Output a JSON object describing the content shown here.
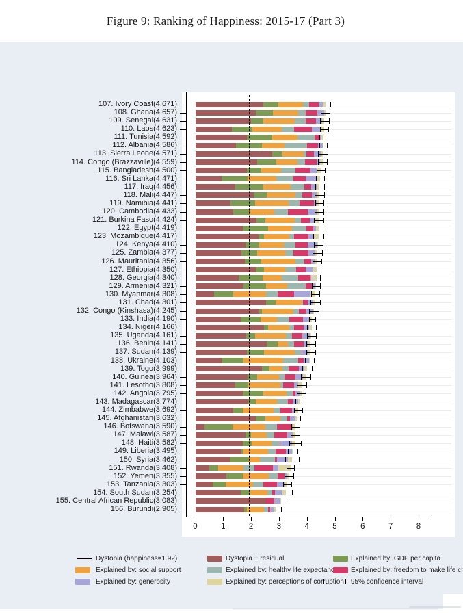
{
  "title": "Figure 9: Ranking of Happiness: 2015-17 (Part 3)",
  "colors": {
    "residual": "#a25c5c",
    "gdp": "#7d9b52",
    "social": "#efa23d",
    "health": "#9cb8ae",
    "freedom": "#d53a68",
    "generosity": "#a8a6d8",
    "corruption": "#ddd49e",
    "dystopia_line": "#000000",
    "panel_bg": "#e9eef5",
    "plot_bg": "#ffffff",
    "grid": "#ededed"
  },
  "legend": {
    "items": [
      {
        "label": "Dystopia (happiness=1.92)",
        "swatch": "line",
        "color": "#000000",
        "col": 0,
        "row": 0
      },
      {
        "label": "Dystopia + residual",
        "swatch": "box",
        "color": "#a25c5c",
        "col": 1,
        "row": 0
      },
      {
        "label": "Explained by: GDP per capita",
        "swatch": "box",
        "color": "#7d9b52",
        "col": 2,
        "row": 0
      },
      {
        "label": "Explained by: social support",
        "swatch": "box",
        "color": "#efa23d",
        "col": 0,
        "row": 1
      },
      {
        "label": "Explained by: healthy life expectancy",
        "swatch": "box",
        "color": "#9cb8ae",
        "col": 1,
        "row": 1
      },
      {
        "label": "Explained by: freedom to make life choices",
        "swatch": "box",
        "color": "#d53a68",
        "col": 2,
        "row": 1
      },
      {
        "label": "Explained by: generosity",
        "swatch": "box",
        "color": "#a8a6d8",
        "col": 0,
        "row": 2
      },
      {
        "label": "Explained by: perceptions of corruption",
        "swatch": "box",
        "color": "#ddd49e",
        "col": 1,
        "row": 2
      },
      {
        "label": "95% confidence interval",
        "swatch": "errorbar",
        "color": "#000000",
        "col": 2,
        "row": 2
      }
    ]
  },
  "chart_data": {
    "type": "bar",
    "orientation": "horizontal-stacked",
    "title": "Figure 9: Ranking of Happiness: 2015-17 (Part 3)",
    "xlabel": "",
    "ylabel": "",
    "xlim": [
      0,
      8
    ],
    "xticks": [
      0,
      1,
      2,
      3,
      4,
      5,
      6,
      7,
      8
    ],
    "grid": "faint horizontal row lines",
    "reference_line": {
      "label": "Dystopia (happiness=1.92)",
      "value": 1.92,
      "style": "dashed"
    },
    "stack_order": [
      "residual",
      "gdp",
      "social",
      "health",
      "freedom",
      "generosity",
      "corruption"
    ],
    "series_names": [
      "Dystopia + residual",
      "Explained by: GDP per capita",
      "Explained by: social support",
      "Explained by: healthy life expectancy",
      "Explained by: freedom to make life choices",
      "Explained by: generosity",
      "Explained by: perceptions of corruption"
    ],
    "note": "component values estimated from bar segment lengths; score totals are exact as printed",
    "countries": [
      {
        "rank": 107,
        "name": "Ivory Coast",
        "score": "4.671",
        "res": 2.44,
        "gdp": 0.54,
        "soc": 0.87,
        "hea": 0.23,
        "fre": 0.35,
        "gen": 0.15,
        "cor": 0.09,
        "ci": 0.18
      },
      {
        "rank": 108,
        "name": "Ghana",
        "score": "4.657",
        "res": 2.18,
        "gdp": 0.59,
        "soc": 0.91,
        "hea": 0.29,
        "fre": 0.4,
        "gen": 0.25,
        "cor": 0.04,
        "ci": 0.16
      },
      {
        "rank": 109,
        "name": "Senegal",
        "score": "4.631",
        "res": 2.0,
        "gdp": 0.43,
        "soc": 1.13,
        "hea": 0.41,
        "fre": 0.36,
        "gen": 0.21,
        "cor": 0.09,
        "ci": 0.15
      },
      {
        "rank": 110,
        "name": "Laos",
        "score": "4.623",
        "res": 1.32,
        "gdp": 0.72,
        "soc": 1.07,
        "hea": 0.44,
        "fre": 0.63,
        "gen": 0.33,
        "cor": 0.11,
        "ci": 0.14
      },
      {
        "rank": 111,
        "name": "Tunisia",
        "score": "4.592",
        "res": 1.86,
        "gdp": 0.9,
        "soc": 0.91,
        "hea": 0.61,
        "fre": 0.19,
        "gen": 0.06,
        "cor": 0.06,
        "ci": 0.15
      },
      {
        "rank": 112,
        "name": "Albania",
        "score": "4.586",
        "res": 1.46,
        "gdp": 0.92,
        "soc": 0.82,
        "hea": 0.81,
        "fre": 0.38,
        "gen": 0.17,
        "cor": 0.03,
        "ci": 0.14
      },
      {
        "rank": 113,
        "name": "Sierra Leone",
        "score": "4.571",
        "res": 2.76,
        "gdp": 0.37,
        "soc": 0.76,
        "hea": 0.1,
        "fre": 0.27,
        "gen": 0.24,
        "cor": 0.07,
        "ci": 0.18
      },
      {
        "rank": 114,
        "name": "Congo (Brazzaville)",
        "score": "4.559",
        "res": 2.22,
        "gdp": 0.68,
        "soc": 0.77,
        "hea": 0.26,
        "fre": 0.43,
        "gen": 0.12,
        "cor": 0.08,
        "ci": 0.17
      },
      {
        "rank": 115,
        "name": "Bangladesh",
        "score": "4.500",
        "res": 1.84,
        "gdp": 0.53,
        "soc": 0.71,
        "hea": 0.52,
        "fre": 0.53,
        "gen": 0.24,
        "cor": 0.13,
        "ci": 0.14
      },
      {
        "rank": 116,
        "name": "Sri Lanka",
        "score": "4.471",
        "res": 0.95,
        "gdp": 0.92,
        "soc": 1.03,
        "hea": 0.61,
        "fre": 0.46,
        "gen": 0.4,
        "cor": 0.1,
        "ci": 0.14
      },
      {
        "rank": 117,
        "name": "Iraq",
        "score": "4.456",
        "res": 1.44,
        "gdp": 1.01,
        "soc": 0.97,
        "hea": 0.5,
        "fre": 0.24,
        "gen": 0.2,
        "cor": 0.1,
        "ci": 0.16
      },
      {
        "rank": 118,
        "name": "Mali",
        "score": "4.447",
        "res": 2.1,
        "gdp": 0.45,
        "soc": 1.04,
        "hea": 0.24,
        "fre": 0.36,
        "gen": 0.17,
        "cor": 0.09,
        "ci": 0.17
      },
      {
        "rank": 119,
        "name": "Namibia",
        "score": "4.441",
        "res": 1.27,
        "gdp": 0.87,
        "soc": 1.21,
        "hea": 0.39,
        "fre": 0.52,
        "gen": 0.08,
        "cor": 0.1,
        "ci": 0.15
      },
      {
        "rank": 120,
        "name": "Cambodia",
        "score": "4.433",
        "res": 1.36,
        "gdp": 0.6,
        "soc": 0.86,
        "hea": 0.5,
        "fre": 0.7,
        "gen": 0.34,
        "cor": 0.07,
        "ci": 0.16
      },
      {
        "rank": 121,
        "name": "Burkina Faso",
        "score": "4.424",
        "res": 2.19,
        "gdp": 0.31,
        "soc": 1.06,
        "hea": 0.22,
        "fre": 0.33,
        "gen": 0.18,
        "cor": 0.13,
        "ci": 0.16
      },
      {
        "rank": 122,
        "name": "Egypt",
        "score": "4.419",
        "res": 1.7,
        "gdp": 0.92,
        "soc": 0.84,
        "hea": 0.52,
        "fre": 0.26,
        "gen": 0.09,
        "cor": 0.09,
        "ci": 0.15
      },
      {
        "rank": 123,
        "name": "Mozambique",
        "score": "4.417",
        "res": 2.26,
        "gdp": 0.2,
        "soc": 0.9,
        "hea": 0.17,
        "fre": 0.52,
        "gen": 0.21,
        "cor": 0.16,
        "ci": 0.18
      },
      {
        "rank": 124,
        "name": "Kenya",
        "score": "4.410",
        "res": 1.8,
        "gdp": 0.49,
        "soc": 0.88,
        "hea": 0.42,
        "fre": 0.45,
        "gen": 0.31,
        "cor": 0.06,
        "ci": 0.15
      },
      {
        "rank": 125,
        "name": "Zambia",
        "score": "4.377",
        "res": 1.66,
        "gdp": 0.56,
        "soc": 1.0,
        "hea": 0.29,
        "fre": 0.54,
        "gen": 0.25,
        "cor": 0.08,
        "ci": 0.18
      },
      {
        "rank": 126,
        "name": "Mauritania",
        "score": "4.356",
        "res": 1.77,
        "gdp": 0.59,
        "soc": 1.23,
        "hea": 0.31,
        "fre": 0.26,
        "gen": 0.11,
        "cor": 0.09,
        "ci": 0.16
      },
      {
        "rank": 127,
        "name": "Ethiopia",
        "score": "4.350",
        "res": 2.16,
        "gdp": 0.31,
        "soc": 0.75,
        "hea": 0.39,
        "fre": 0.36,
        "gen": 0.27,
        "cor": 0.11,
        "ci": 0.15
      },
      {
        "rank": 128,
        "name": "Georgia",
        "score": "4.340",
        "res": 1.56,
        "gdp": 0.85,
        "soc": 0.68,
        "hea": 0.61,
        "fre": 0.42,
        "gen": 0.04,
        "cor": 0.18,
        "ci": 0.14
      },
      {
        "rank": 129,
        "name": "Armenia",
        "score": "4.321",
        "res": 1.72,
        "gdp": 0.82,
        "soc": 0.75,
        "hea": 0.66,
        "fre": 0.26,
        "gen": 0.08,
        "cor": 0.03,
        "ci": 0.14
      },
      {
        "rank": 130,
        "name": "Myanmar",
        "score": "4.308",
        "res": 0.68,
        "gdp": 0.68,
        "soc": 1.17,
        "hea": 0.43,
        "fre": 0.58,
        "gen": 0.6,
        "cor": 0.17,
        "ci": 0.15
      },
      {
        "rank": 131,
        "name": "Chad",
        "score": "4.301",
        "res": 2.53,
        "gdp": 0.36,
        "soc": 0.91,
        "hea": 0.05,
        "fre": 0.19,
        "gen": 0.18,
        "cor": 0.08,
        "ci": 0.17
      },
      {
        "rank": 132,
        "name": "Congo (Kinshasa)",
        "score": "4.245",
        "res": 2.3,
        "gdp": 0.09,
        "soc": 1.13,
        "hea": 0.19,
        "fre": 0.27,
        "gen": 0.22,
        "cor": 0.05,
        "ci": 0.17
      },
      {
        "rank": 133,
        "name": "India",
        "score": "4.190",
        "res": 1.62,
        "gdp": 0.72,
        "soc": 0.6,
        "hea": 0.44,
        "fre": 0.49,
        "gen": 0.23,
        "cor": 0.09,
        "ci": 0.1
      },
      {
        "rank": 134,
        "name": "Niger",
        "score": "4.166",
        "res": 2.47,
        "gdp": 0.14,
        "soc": 0.77,
        "hea": 0.16,
        "fre": 0.34,
        "gen": 0.19,
        "cor": 0.1,
        "ci": 0.16
      },
      {
        "rank": 135,
        "name": "Uganda",
        "score": "4.161",
        "res": 1.83,
        "gdp": 0.32,
        "soc": 1.09,
        "hea": 0.24,
        "fre": 0.36,
        "gen": 0.26,
        "cor": 0.06,
        "ci": 0.16
      },
      {
        "rank": 136,
        "name": "Benin",
        "score": "4.141",
        "res": 2.57,
        "gdp": 0.39,
        "soc": 0.35,
        "hea": 0.22,
        "fre": 0.35,
        "gen": 0.18,
        "cor": 0.08,
        "ci": 0.17
      },
      {
        "rank": 137,
        "name": "Sudan",
        "score": "4.139",
        "res": 1.85,
        "gdp": 0.61,
        "soc": 1.1,
        "hea": 0.26,
        "fre": 0.02,
        "gen": 0.22,
        "cor": 0.08,
        "ci": 0.16
      },
      {
        "rank": 138,
        "name": "Ukraine",
        "score": "4.103",
        "res": 0.94,
        "gdp": 0.79,
        "soc": 1.41,
        "hea": 0.56,
        "fre": 0.18,
        "gen": 0.21,
        "cor": 0.01,
        "ci": 0.16
      },
      {
        "rank": 139,
        "name": "Togo",
        "score": "3.999",
        "res": 2.39,
        "gdp": 0.26,
        "soc": 0.47,
        "hea": 0.22,
        "fre": 0.38,
        "gen": 0.18,
        "cor": 0.1,
        "ci": 0.17
      },
      {
        "rank": 140,
        "name": "Guinea",
        "score": "3.964",
        "res": 1.87,
        "gdp": 0.34,
        "soc": 0.79,
        "hea": 0.21,
        "fre": 0.39,
        "gen": 0.25,
        "cor": 0.11,
        "ci": 0.17
      },
      {
        "rank": 141,
        "name": "Lesotho",
        "score": "3.808",
        "res": 1.44,
        "gdp": 0.47,
        "soc": 1.13,
        "hea": 0.1,
        "fre": 0.39,
        "gen": 0.16,
        "cor": 0.12,
        "ci": 0.18
      },
      {
        "rank": 142,
        "name": "Angola",
        "score": "3.795",
        "res": 1.7,
        "gdp": 0.73,
        "soc": 0.84,
        "hea": 0.23,
        "fre": 0.1,
        "gen": 0.13,
        "cor": 0.07,
        "ci": 0.16
      },
      {
        "rank": 143,
        "name": "Madagascar",
        "score": "3.774",
        "res": 1.91,
        "gdp": 0.26,
        "soc": 0.77,
        "hea": 0.37,
        "fre": 0.19,
        "gen": 0.19,
        "cor": 0.08,
        "ci": 0.18
      },
      {
        "rank": 144,
        "name": "Zimbabwe",
        "score": "3.692",
        "res": 1.35,
        "gdp": 0.36,
        "soc": 1.09,
        "hea": 0.25,
        "fre": 0.41,
        "gen": 0.13,
        "cor": 0.1,
        "ci": 0.15
      },
      {
        "rank": 145,
        "name": "Afghanistan",
        "score": "3.632",
        "res": 2.17,
        "gdp": 0.33,
        "soc": 0.54,
        "hea": 0.26,
        "fre": 0.09,
        "gen": 0.19,
        "cor": 0.05,
        "ci": 0.14
      },
      {
        "rank": 146,
        "name": "Botswana",
        "score": "3.590",
        "res": 0.32,
        "gdp": 1.02,
        "soc": 1.17,
        "hea": 0.42,
        "fre": 0.51,
        "gen": 0.05,
        "cor": 0.1,
        "ci": 0.15
      },
      {
        "rank": 147,
        "name": "Malawi",
        "score": "3.587",
        "res": 1.81,
        "gdp": 0.19,
        "soc": 0.56,
        "hea": 0.27,
        "fre": 0.46,
        "gen": 0.21,
        "cor": 0.09,
        "ci": 0.16
      },
      {
        "rank": 148,
        "name": "Haiti",
        "score": "3.582",
        "res": 1.7,
        "gdp": 0.32,
        "soc": 0.71,
        "hea": 0.29,
        "fre": 0.03,
        "gen": 0.42,
        "cor": 0.11,
        "ci": 0.2
      },
      {
        "rank": 149,
        "name": "Liberia",
        "score": "3.495",
        "res": 1.66,
        "gdp": 0.08,
        "soc": 0.86,
        "hea": 0.27,
        "fre": 0.37,
        "gen": 0.23,
        "cor": 0.03,
        "ci": 0.18
      },
      {
        "rank": 150,
        "name": "Syria",
        "score": "3.462",
        "res": 1.24,
        "gdp": 0.69,
        "soc": 0.38,
        "hea": 0.54,
        "fre": 0.09,
        "gen": 0.38,
        "cor": 0.14,
        "ci": 0.25
      },
      {
        "rank": 151,
        "name": "Rwanda",
        "score": "3.408",
        "res": 0.5,
        "gdp": 0.33,
        "soc": 0.9,
        "hea": 0.4,
        "fre": 0.64,
        "gen": 0.2,
        "cor": 0.44,
        "ci": 0.14
      },
      {
        "rank": 152,
        "name": "Yemen",
        "score": "3.355",
        "res": 1.11,
        "gdp": 0.59,
        "soc": 0.94,
        "hea": 0.31,
        "fre": 0.25,
        "gen": 0.1,
        "cor": 0.06,
        "ci": 0.16
      },
      {
        "rank": 153,
        "name": "Tanzania",
        "score": "3.303",
        "res": 0.62,
        "gdp": 0.46,
        "soc": 0.99,
        "hea": 0.38,
        "fre": 0.48,
        "gen": 0.27,
        "cor": 0.1,
        "ci": 0.15
      },
      {
        "rank": 154,
        "name": "South Sudan",
        "score": "3.254",
        "res": 1.63,
        "gdp": 0.34,
        "soc": 0.61,
        "hea": 0.18,
        "fre": 0.1,
        "gen": 0.26,
        "cor": 0.13,
        "ci": 0.22
      },
      {
        "rank": 155,
        "name": "Central African Republic",
        "score": "3.083",
        "res": 2.48,
        "gdp": 0.02,
        "soc": 0.0,
        "hea": 0.01,
        "fre": 0.31,
        "gen": 0.22,
        "cor": 0.04,
        "ci": 0.2
      },
      {
        "rank": 156,
        "name": "Burundi",
        "score": "2.905",
        "res": 1.75,
        "gdp": 0.09,
        "soc": 0.63,
        "hea": 0.15,
        "fre": 0.06,
        "gen": 0.15,
        "cor": 0.08,
        "ci": 0.18
      }
    ]
  }
}
